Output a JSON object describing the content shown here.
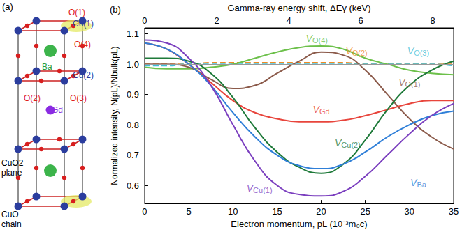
{
  "diagram": {
    "letter": "(a)",
    "labels": [
      {
        "text": "O(1)",
        "color": "#e0211d"
      },
      {
        "text": "Cu(1)",
        "color": "#2b3d9e"
      },
      {
        "text": "O(4)",
        "color": "#e0211d"
      },
      {
        "text": "Ba",
        "color": "#2f9e3a"
      },
      {
        "text": "Cu(2)",
        "color": "#2b3d9e"
      },
      {
        "text": "O(2)",
        "color": "#e0211d"
      },
      {
        "text": "O(3)",
        "color": "#e0211d"
      },
      {
        "text": "Gd",
        "color": "#8a2be2"
      }
    ],
    "plane_label": "CuO2 plane",
    "chain_label": "CuO chain"
  },
  "chart_data": {
    "type": "line",
    "panel": "(b)",
    "x_label": "Electron momentum, pL (10⁻³m₀c)",
    "x2_label": "Gamma-ray energy shift, ΔEγ (keV)",
    "y_label": "Normalized intensity, N(pL)/Nbulk(pL)",
    "xlim": [
      0,
      35
    ],
    "xticks": [
      0,
      5,
      10,
      15,
      20,
      25,
      30,
      35
    ],
    "x2lim": [
      0,
      8.58
    ],
    "x2ticks": [
      0,
      2,
      4,
      6,
      8
    ],
    "ylim": [
      0.54,
      1.12
    ],
    "yticks": [
      0.6,
      0.7,
      0.8,
      0.9,
      {
        "value": 1,
        "label": "1.0"
      },
      1.1
    ],
    "grid": false,
    "hline": 1,
    "x": [
      0,
      2.5,
      5,
      7.5,
      10,
      12.5,
      15,
      17.5,
      20,
      22.5,
      25,
      27.5,
      30,
      32.5,
      35
    ],
    "series": [
      {
        "name": "VO(2)",
        "color": "#f08a24",
        "line_style": "dashed",
        "label_pos": [
          24,
          1.045
        ],
        "values": [
          1.0,
          1.0,
          1.0,
          1.005,
          1.005,
          1.005,
          1.005,
          1.005,
          1.005,
          1.005,
          1.0,
          1.0,
          1.0,
          1.0,
          1.0
        ]
      },
      {
        "name": "VO(3)",
        "color": "#3fc0d8",
        "line_style": "dashed",
        "label_pos": [
          31,
          1.045
        ],
        "values": [
          0.995,
          0.995,
          1.0,
          1.0,
          1.0,
          1.0,
          1.0,
          1.0,
          1.0,
          1.0,
          1.0,
          1.0,
          1.0,
          1.0,
          0.995
        ]
      },
      {
        "name": "VO(4)",
        "color": "#6cc04a",
        "line_style": "solid",
        "label_pos": [
          19.5,
          1.085
        ],
        "values": [
          0.99,
          0.985,
          0.985,
          0.99,
          1.0,
          1.02,
          1.04,
          1.055,
          1.06,
          1.05,
          1.02,
          1.0,
          0.98,
          0.97,
          0.965
        ]
      },
      {
        "name": "VO(1)",
        "color": "#8b5a4a",
        "line_style": "solid",
        "label_pos": [
          30,
          0.94
        ],
        "values": [
          1.0,
          1.0,
          0.99,
          0.95,
          0.92,
          0.93,
          0.97,
          1.01,
          1.04,
          1.03,
          0.98,
          0.9,
          0.82,
          0.76,
          0.72
        ]
      },
      {
        "name": "VGd",
        "color": "#e8453c",
        "line_style": "solid",
        "label_pos": [
          20,
          0.85
        ],
        "values": [
          1.07,
          1.05,
          1.0,
          0.94,
          0.88,
          0.84,
          0.82,
          0.81,
          0.81,
          0.815,
          0.83,
          0.85,
          0.87,
          0.88,
          0.88
        ]
      },
      {
        "name": "VCu(2)",
        "color": "#1f7a3a",
        "line_style": "solid",
        "label_pos": [
          23,
          0.74
        ],
        "values": [
          1.02,
          1.02,
          1.01,
          0.97,
          0.89,
          0.79,
          0.71,
          0.66,
          0.64,
          0.67,
          0.75,
          0.85,
          0.93,
          0.98,
          1.01
        ]
      },
      {
        "name": "VBa",
        "color": "#2f7fd8",
        "line_style": "solid",
        "label_pos": [
          31,
          0.61
        ],
        "values": [
          1.07,
          1.05,
          1.0,
          0.93,
          0.84,
          0.76,
          0.7,
          0.665,
          0.655,
          0.67,
          0.71,
          0.76,
          0.8,
          0.83,
          0.845
        ]
      },
      {
        "name": "VCu(1)",
        "color": "#7b3fbf",
        "line_style": "solid",
        "label_pos": [
          13,
          0.59
        ],
        "values": [
          1.08,
          1.07,
          1.02,
          0.93,
          0.8,
          0.68,
          0.6,
          0.57,
          0.565,
          0.58,
          0.63,
          0.7,
          0.77,
          0.83,
          0.87
        ]
      }
    ]
  }
}
